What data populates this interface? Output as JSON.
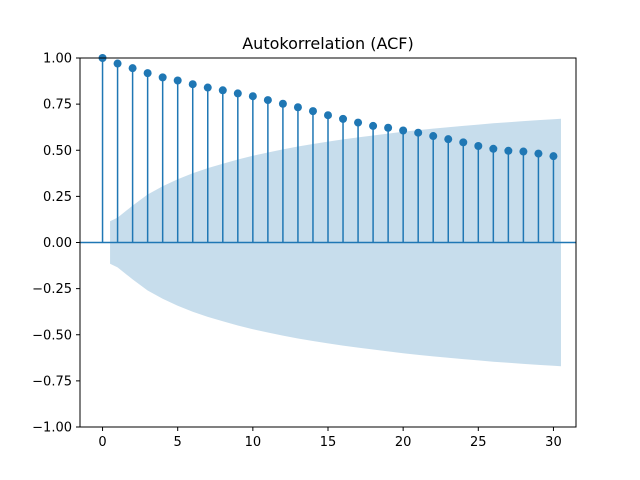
{
  "chart_data": {
    "type": "stem",
    "title": "Autokorrelation (ACF)",
    "xlabel": "",
    "ylabel": "",
    "xlim": [
      -1.5,
      31.5
    ],
    "ylim": [
      -1.0,
      1.0
    ],
    "xticks": [
      0,
      5,
      10,
      15,
      20,
      25,
      30
    ],
    "xtick_labels": [
      "0",
      "5",
      "10",
      "15",
      "20",
      "25",
      "30"
    ],
    "yticks": [
      1.0,
      0.75,
      0.5,
      0.25,
      0.0,
      -0.25,
      -0.5,
      -0.75,
      -1.0
    ],
    "ytick_labels": [
      "1.00",
      "0.75",
      "0.50",
      "0.25",
      "0.00",
      "−0.25",
      "−0.50",
      "−0.75",
      "−1.00"
    ],
    "grid": false,
    "colors": {
      "stem": "#1f77b4",
      "marker": "#1f77b4",
      "baseline": "#1f77b4",
      "confidence_band": "#1f77b4"
    },
    "series": [
      {
        "lags": [
          0,
          1,
          2,
          3,
          4,
          5,
          6,
          7,
          8,
          9,
          10,
          11,
          12,
          13,
          14,
          15,
          16,
          17,
          18,
          19,
          20,
          21,
          22,
          23,
          24,
          25,
          26,
          27,
          28,
          29,
          30
        ],
        "values": [
          1.0,
          0.97,
          0.945,
          0.918,
          0.895,
          0.878,
          0.858,
          0.84,
          0.825,
          0.808,
          0.793,
          0.772,
          0.752,
          0.733,
          0.712,
          0.69,
          0.67,
          0.65,
          0.632,
          0.622,
          0.607,
          0.595,
          0.577,
          0.56,
          0.543,
          0.523,
          0.508,
          0.497,
          0.493,
          0.482,
          0.468
        ]
      }
    ],
    "confidence_band": {
      "lags": [
        0.5,
        1,
        2,
        3,
        4,
        5,
        6,
        7,
        8,
        9,
        10,
        11,
        12,
        13,
        14,
        15,
        16,
        17,
        18,
        19,
        20,
        21,
        22,
        23,
        24,
        25,
        26,
        27,
        28,
        29,
        30,
        30.5
      ],
      "upper": [
        0.115,
        0.135,
        0.2,
        0.26,
        0.305,
        0.343,
        0.375,
        0.403,
        0.427,
        0.45,
        0.47,
        0.488,
        0.505,
        0.52,
        0.534,
        0.547,
        0.559,
        0.57,
        0.58,
        0.59,
        0.6,
        0.609,
        0.617,
        0.625,
        0.632,
        0.639,
        0.646,
        0.652,
        0.658,
        0.663,
        0.668,
        0.671
      ]
    }
  }
}
